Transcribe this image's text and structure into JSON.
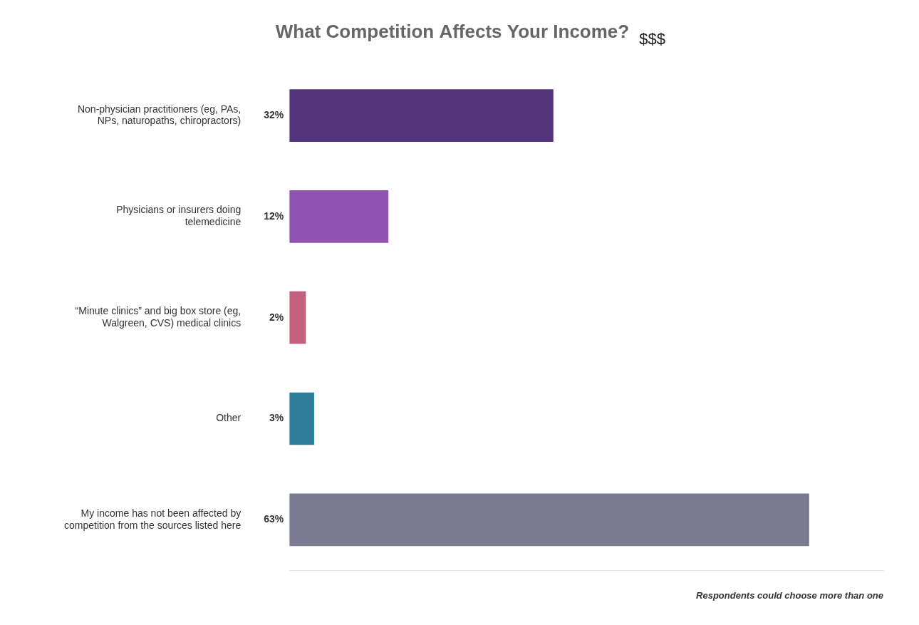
{
  "chart_data": {
    "type": "bar",
    "orientation": "horizontal",
    "title": "What Competition Affects Your Income?",
    "annotations": [
      "$$$",
      "Respondents could choose more than one"
    ],
    "categories": [
      "Non-physician practitioners (eg, PAs,\nNPs, naturopaths, chiropractors)",
      "Physicians or insurers doing\ntelemedicine",
      "“Minute clinics” and big box store (eg,\nWalgreen, CVS) medical clinics",
      "Other",
      "My income has not been affected by\ncompetition from the sources listed here"
    ],
    "values": [
      32,
      12,
      2,
      3,
      63
    ],
    "value_labels": [
      "32%",
      "12%",
      "2%",
      "3%",
      "63%"
    ],
    "data_labels": true,
    "colors": [
      "#53347a",
      "#8e52b0",
      "#c4617e",
      "#2e7d9a",
      "#7a7a90"
    ],
    "xlim": [
      0,
      72
    ],
    "grid": false,
    "tick_labels": "y"
  }
}
